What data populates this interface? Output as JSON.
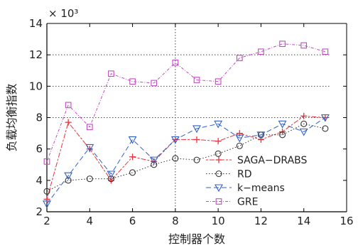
{
  "chart_data": {
    "type": "line",
    "xlabel": "控制器个数",
    "ylabel": "负载均衡指数",
    "y_scale_label": "× 10³",
    "xlim": [
      2,
      16
    ],
    "ylim": [
      2,
      14
    ],
    "x_ticks": [
      2,
      4,
      6,
      8,
      10,
      12,
      14,
      16
    ],
    "y_ticks": [
      2,
      4,
      6,
      8,
      10,
      12,
      14
    ],
    "x_tick_labels": [
      "2",
      "4",
      "6",
      "8",
      "10",
      "12",
      "14",
      "16"
    ],
    "y_tick_labels": [
      "2",
      "4",
      "6",
      "8",
      "10",
      "12",
      "14"
    ],
    "grid": "dotted reference lines at x = 8 and y = 8, 10, 12",
    "legend_position": "bottom-right",
    "x": [
      2,
      3,
      4,
      5,
      6,
      7,
      8,
      9,
      10,
      11,
      12,
      13,
      14,
      15
    ],
    "series": [
      {
        "name": "SAGA−DRABS",
        "color": "#e8323c",
        "marker": "plus",
        "dash": "3,2,7,2",
        "values": [
          2.8,
          7.7,
          6.0,
          4.0,
          5.5,
          5.2,
          6.6,
          6.6,
          6.5,
          7.0,
          6.6,
          7.1,
          8.1,
          8.0
        ]
      },
      {
        "name": "RD",
        "color": "#333333",
        "marker": "circle",
        "dash": "1.5,2.5",
        "values": [
          3.3,
          4.0,
          4.1,
          4.1,
          4.5,
          5.0,
          5.4,
          5.3,
          5.7,
          6.2,
          6.9,
          6.9,
          7.6,
          7.3
        ]
      },
      {
        "name": "k−means",
        "color": "#2f5fc4",
        "marker": "triangle-down",
        "dash": "7,4",
        "values": [
          2.5,
          4.3,
          6.1,
          4.4,
          6.6,
          5.3,
          6.6,
          7.3,
          7.6,
          6.7,
          6.9,
          7.6,
          7.1,
          8.0
        ]
      },
      {
        "name": "GRE",
        "color": "#c14bc1",
        "marker": "square",
        "dash": "4,2,1,2",
        "values": [
          5.2,
          8.8,
          7.4,
          10.8,
          10.3,
          10.2,
          11.5,
          10.4,
          10.3,
          11.8,
          12.2,
          12.7,
          12.6,
          12.2
        ]
      }
    ]
  }
}
